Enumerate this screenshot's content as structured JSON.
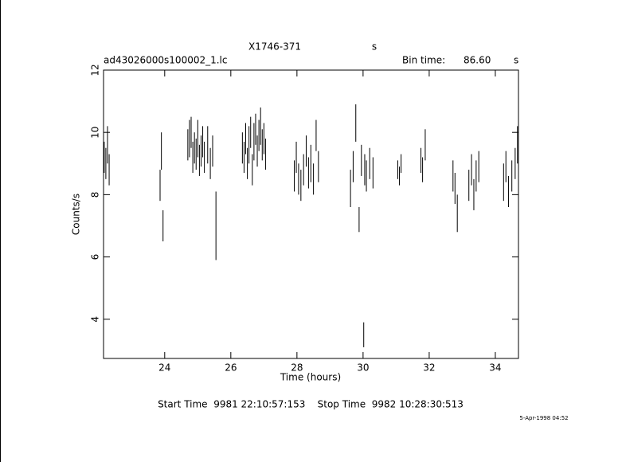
{
  "chart_data": {
    "type": "errorbar",
    "title": "X1746-371",
    "title_unit": "s",
    "subtitle": "ad43026000s100002_1.lc",
    "bin_label": "Bin time:",
    "bin_value": "86.60",
    "bin_unit": "s",
    "x_label": "Time (hours)",
    "y_label": "Counts/s",
    "footer": "Start Time  9981 22:10:57:153    Stop Time  9982 10:28:30:513",
    "stamp": "5-Apr-1998 04:52",
    "xlim": [
      22.15,
      34.7
    ],
    "ylim": [
      2.74,
      12
    ],
    "xticks": [
      24,
      26,
      28,
      30,
      32,
      34
    ],
    "yticks": [
      4,
      6,
      8,
      10,
      12
    ],
    "color": "#000000",
    "series": [
      {
        "x": [
          22.17,
          22.22,
          22.27,
          22.32,
          23.86,
          23.9,
          23.95,
          24.7,
          24.75,
          24.8,
          24.85,
          24.9,
          24.95,
          25.0,
          25.05,
          25.1,
          25.15,
          25.2,
          25.3,
          25.38,
          25.45,
          25.55,
          26.35,
          26.4,
          26.45,
          26.5,
          26.55,
          26.6,
          26.65,
          26.7,
          26.75,
          26.8,
          26.85,
          26.9,
          26.95,
          27.0,
          27.05,
          27.92,
          27.98,
          28.05,
          28.12,
          28.2,
          28.28,
          28.35,
          28.42,
          28.5,
          28.58,
          28.65,
          29.62,
          29.7,
          29.78,
          29.88,
          29.95,
          30.02,
          30.05,
          30.1,
          30.2,
          30.3,
          31.05,
          31.1,
          31.15,
          31.75,
          31.8,
          31.88,
          32.72,
          32.78,
          32.85,
          33.2,
          33.28,
          33.35,
          33.42,
          33.5,
          34.25,
          34.32,
          34.4,
          34.5,
          34.6,
          34.67
        ],
        "values": [
          9.2,
          9.0,
          9.6,
          8.8,
          8.3,
          9.4,
          7.0,
          9.6,
          9.8,
          10.0,
          9.2,
          9.5,
          9.3,
          9.8,
          9.1,
          9.4,
          9.7,
          9.2,
          9.6,
          9.0,
          9.4,
          7.0,
          9.5,
          9.2,
          9.8,
          9.0,
          9.6,
          10.0,
          8.8,
          9.7,
          10.1,
          9.4,
          9.9,
          10.2,
          9.6,
          9.8,
          9.3,
          8.6,
          9.2,
          8.5,
          8.3,
          8.8,
          9.4,
          8.7,
          9.0,
          8.5,
          9.9,
          8.9,
          8.2,
          8.9,
          10.3,
          7.2,
          9.1,
          3.5,
          8.8,
          8.6,
          9.0,
          8.7,
          8.8,
          8.6,
          9.0,
          9.1,
          8.8,
          9.6,
          8.6,
          8.2,
          7.4,
          8.3,
          8.8,
          8.0,
          8.6,
          8.9,
          8.4,
          8.9,
          8.1,
          8.6,
          9.0,
          9.6
        ],
        "errors": [
          0.5,
          0.5,
          0.6,
          0.5,
          0.5,
          0.6,
          0.5,
          0.5,
          0.6,
          0.5,
          0.5,
          0.5,
          0.5,
          0.6,
          0.5,
          0.5,
          0.5,
          0.5,
          0.6,
          0.5,
          0.5,
          1.1,
          0.5,
          0.5,
          0.5,
          0.5,
          0.6,
          0.5,
          0.5,
          0.6,
          0.5,
          0.5,
          0.5,
          0.6,
          0.5,
          0.5,
          0.5,
          0.5,
          0.5,
          0.5,
          0.5,
          0.5,
          0.5,
          0.5,
          0.6,
          0.5,
          0.5,
          0.5,
          0.6,
          0.5,
          0.6,
          0.4,
          0.5,
          0.4,
          0.5,
          0.5,
          0.5,
          0.5,
          0.3,
          0.3,
          0.3,
          0.4,
          0.4,
          0.5,
          0.5,
          0.5,
          0.6,
          0.5,
          0.5,
          0.5,
          0.5,
          0.5,
          0.6,
          0.5,
          0.5,
          0.5,
          0.5,
          0.6
        ]
      }
    ]
  }
}
